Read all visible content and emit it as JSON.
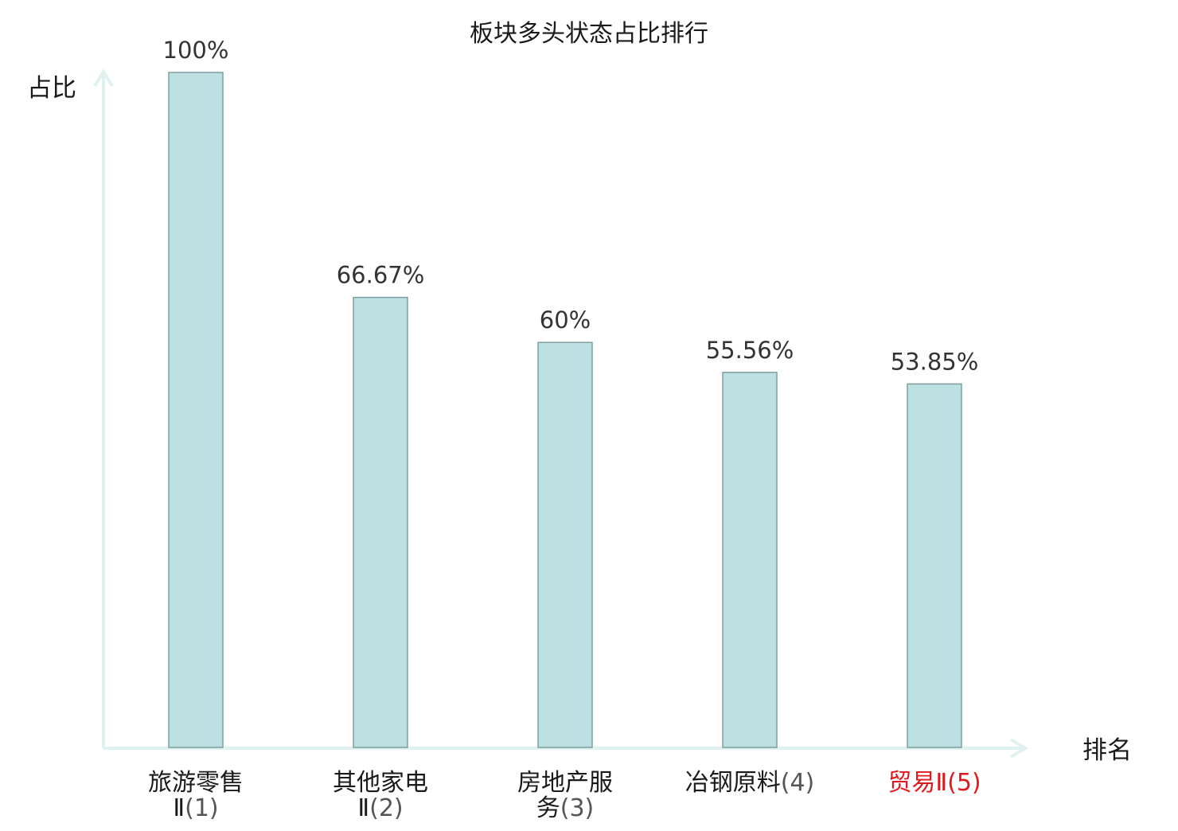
{
  "chart_data": {
    "type": "bar",
    "title": "板块多头状态占比排行",
    "ylabel": "占比",
    "xlabel": "排名",
    "categories": [
      {
        "name": "旅游零售Ⅱ",
        "rank": "(1)",
        "lines": [
          "旅游零售",
          "Ⅱ",
          "(1)"
        ]
      },
      {
        "name": "其他家电Ⅱ",
        "rank": "(2)",
        "lines": [
          "其他家电",
          "Ⅱ",
          "(2)"
        ]
      },
      {
        "name": "房地产服务",
        "rank": "(3)",
        "lines": [
          "房地产服",
          "务",
          "(3)"
        ]
      },
      {
        "name": "冶钢原料",
        "rank": "(4)",
        "lines": [
          "冶钢原料",
          "",
          "(4)"
        ]
      },
      {
        "name": "贸易Ⅱ",
        "rank": "(5)",
        "lines": [
          "贸易",
          "Ⅱ",
          "(5)"
        ]
      }
    ],
    "values": [
      100,
      66.67,
      60,
      55.56,
      53.85
    ],
    "value_labels": [
      "100%",
      "66.67%",
      "60%",
      "55.56%",
      "53.85%"
    ],
    "ylim": [
      0,
      100
    ],
    "grid": false,
    "highlight_index": 4,
    "colors": {
      "bar_fill": "#bde1e2",
      "bar_stroke": "#7f9ea0",
      "axis": "#dff2ef",
      "text": "#1a1a1a",
      "value_text": "#333333",
      "rank_text": "#555555",
      "highlight": "#e0191e"
    }
  }
}
